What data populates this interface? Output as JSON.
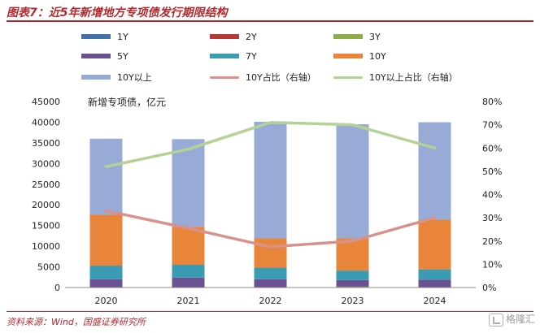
{
  "header": {
    "title": "图表7：近5年新增地方专项债发行期限结构"
  },
  "footer": {
    "source": "资料来源：Wind，国盛证券研究所",
    "watermark": "格隆汇"
  },
  "colors": {
    "1Y": "#4472a8",
    "2Y": "#b23b35",
    "3Y": "#8fac4b",
    "5Y": "#6b5192",
    "7Y": "#3a9bb3",
    "10Y": "#e8853a",
    "10Y以上": "#97abd6",
    "10Y占比（右轴）": "#d9918e",
    "10Y以上占比（右轴）": "#b4d294",
    "title": "#b3282d"
  },
  "chart_data": {
    "type": "bar",
    "stacked": true,
    "title": "新增专项债，亿元",
    "xlabel": "",
    "ylabel": "",
    "categories": [
      "2020",
      "2021",
      "2022",
      "2023",
      "2024"
    ],
    "ylim": [
      0,
      45000
    ],
    "yticks": [
      0,
      5000,
      10000,
      15000,
      20000,
      25000,
      30000,
      35000,
      40000,
      45000
    ],
    "y2lim": [
      0,
      80
    ],
    "y2ticks": [
      "0%",
      "10%",
      "20%",
      "30%",
      "40%",
      "50%",
      "60%",
      "70%",
      "80%"
    ],
    "grid": false,
    "legend_position": "top",
    "series": [
      {
        "name": "1Y",
        "kind": "bar",
        "values": [
          0,
          0,
          0,
          0,
          0
        ]
      },
      {
        "name": "2Y",
        "kind": "bar",
        "values": [
          0,
          0,
          0,
          0,
          0
        ]
      },
      {
        "name": "3Y",
        "kind": "bar",
        "values": [
          0,
          0,
          0,
          200,
          100
        ]
      },
      {
        "name": "5Y",
        "kind": "bar",
        "values": [
          2000,
          2400,
          2000,
          1600,
          1800
        ]
      },
      {
        "name": "7Y",
        "kind": "bar",
        "values": [
          3300,
          3100,
          2800,
          2300,
          2500
        ]
      },
      {
        "name": "10Y",
        "kind": "bar",
        "values": [
          12300,
          9200,
          7100,
          7800,
          12000
        ]
      },
      {
        "name": "10Y以上",
        "kind": "bar",
        "values": [
          18400,
          21200,
          28200,
          27600,
          23600
        ]
      },
      {
        "name": "10Y占比（右轴）",
        "kind": "line",
        "axis": "right",
        "values": [
          33,
          25.5,
          17.5,
          20,
          30
        ]
      },
      {
        "name": "10Y以上占比（右轴）",
        "kind": "line",
        "axis": "right",
        "values": [
          52,
          59.5,
          71,
          70,
          60
        ]
      }
    ]
  }
}
